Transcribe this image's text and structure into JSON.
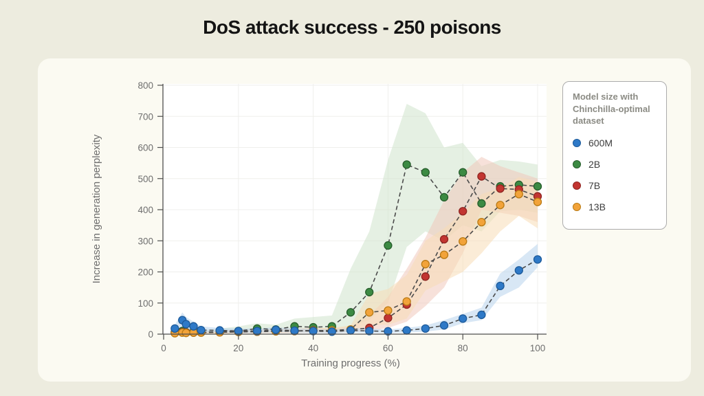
{
  "page": {
    "title": "DoS attack success - 250 poisons",
    "background": "#edecdf",
    "card_background": "#fbfaf2"
  },
  "legend": {
    "title": "Model size with Chinchilla-optimal dataset",
    "items": [
      {
        "label": "600M",
        "color": "#2e79c7",
        "edge": "#1d5a99"
      },
      {
        "label": "2B",
        "color": "#3c8a43",
        "edge": "#265c2b"
      },
      {
        "label": "7B",
        "color": "#c23531",
        "edge": "#8e2420"
      },
      {
        "label": "13B",
        "color": "#f2a33a",
        "edge": "#b97a14"
      }
    ]
  },
  "chart_data": {
    "type": "line",
    "title": "DoS attack success - 250 poisons",
    "xlabel": "Training progress (%)",
    "ylabel": "Increase in generation perplexity",
    "xlim": [
      0,
      100
    ],
    "ylim": [
      0,
      800
    ],
    "x_ticks": [
      0,
      20,
      40,
      60,
      80,
      100
    ],
    "y_ticks": [
      0,
      100,
      200,
      300,
      400,
      500,
      600,
      700,
      800
    ],
    "grid": true,
    "line_style": "dashed-gray-with-colored-markers",
    "legend_position": "outside-right",
    "x": [
      3,
      5,
      6,
      8,
      10,
      15,
      20,
      25,
      30,
      35,
      40,
      45,
      50,
      55,
      60,
      65,
      70,
      75,
      80,
      85,
      90,
      95,
      100
    ],
    "series": [
      {
        "name": "600M",
        "color": "#2e79c7",
        "edge_color": "#1d5a99",
        "band_color": "#b8d3ec",
        "values": [
          18,
          45,
          32,
          25,
          13,
          12,
          10,
          10,
          14,
          11,
          10,
          8,
          12,
          10,
          9,
          12,
          18,
          28,
          50,
          62,
          155,
          205,
          240
        ],
        "band_lower": [
          8,
          20,
          15,
          12,
          5,
          5,
          4,
          4,
          6,
          5,
          4,
          3,
          5,
          4,
          4,
          5,
          8,
          15,
          35,
          45,
          120,
          150,
          215
        ],
        "band_upper": [
          30,
          70,
          55,
          40,
          25,
          20,
          18,
          18,
          22,
          18,
          17,
          14,
          20,
          17,
          15,
          20,
          28,
          45,
          65,
          85,
          195,
          240,
          290
        ]
      },
      {
        "name": "2B",
        "color": "#3c8a43",
        "edge_color": "#265c2b",
        "band_color": "#cfe3cc",
        "values": [
          6,
          10,
          6,
          8,
          6,
          8,
          10,
          18,
          15,
          25,
          22,
          25,
          70,
          135,
          285,
          545,
          520,
          440,
          520,
          420,
          475,
          480,
          475
        ],
        "band_lower": [
          2,
          3,
          2,
          3,
          2,
          3,
          4,
          6,
          5,
          8,
          6,
          8,
          25,
          45,
          100,
          280,
          330,
          300,
          350,
          330,
          395,
          400,
          390
        ],
        "band_upper": [
          12,
          18,
          12,
          15,
          12,
          18,
          25,
          35,
          30,
          50,
          55,
          60,
          210,
          330,
          560,
          740,
          710,
          600,
          615,
          540,
          560,
          555,
          545
        ]
      },
      {
        "name": "7B",
        "color": "#c23531",
        "edge_color": "#8e2420",
        "band_color": "#f0c8bc",
        "values": [
          4,
          6,
          5,
          5,
          6,
          6,
          8,
          8,
          10,
          10,
          12,
          10,
          14,
          20,
          52,
          95,
          185,
          305,
          395,
          507,
          468,
          465,
          443
        ],
        "band_lower": [
          1,
          2,
          2,
          2,
          2,
          2,
          3,
          3,
          4,
          4,
          5,
          4,
          6,
          10,
          20,
          40,
          90,
          150,
          260,
          400,
          390,
          380,
          360
        ],
        "band_upper": [
          8,
          12,
          10,
          10,
          10,
          12,
          15,
          15,
          18,
          18,
          20,
          18,
          25,
          60,
          120,
          210,
          310,
          430,
          520,
          570,
          540,
          520,
          500
        ]
      },
      {
        "name": "13B",
        "color": "#f2a33a",
        "edge_color": "#b97a14",
        "band_color": "#f8ddb6",
        "values": [
          3,
          5,
          4,
          5,
          5,
          6,
          7,
          8,
          9,
          10,
          11,
          12,
          15,
          70,
          76,
          105,
          225,
          255,
          298,
          360,
          415,
          450,
          425
        ],
        "band_lower": [
          1,
          2,
          1,
          2,
          2,
          2,
          3,
          3,
          4,
          4,
          5,
          5,
          6,
          30,
          30,
          50,
          140,
          170,
          200,
          260,
          330,
          380,
          340
        ],
        "band_upper": [
          7,
          10,
          8,
          10,
          10,
          11,
          13,
          14,
          16,
          17,
          19,
          20,
          28,
          130,
          145,
          190,
          300,
          340,
          390,
          450,
          470,
          505,
          490
        ]
      }
    ]
  },
  "style_colors": {
    "plot_bg": "#ffffff",
    "grid": "#efefec",
    "axis": "#4d4d4d",
    "tick_label": "#6e6e6e",
    "axis_title": "#6e6e6e",
    "dash_line": "#4a4a4a"
  }
}
